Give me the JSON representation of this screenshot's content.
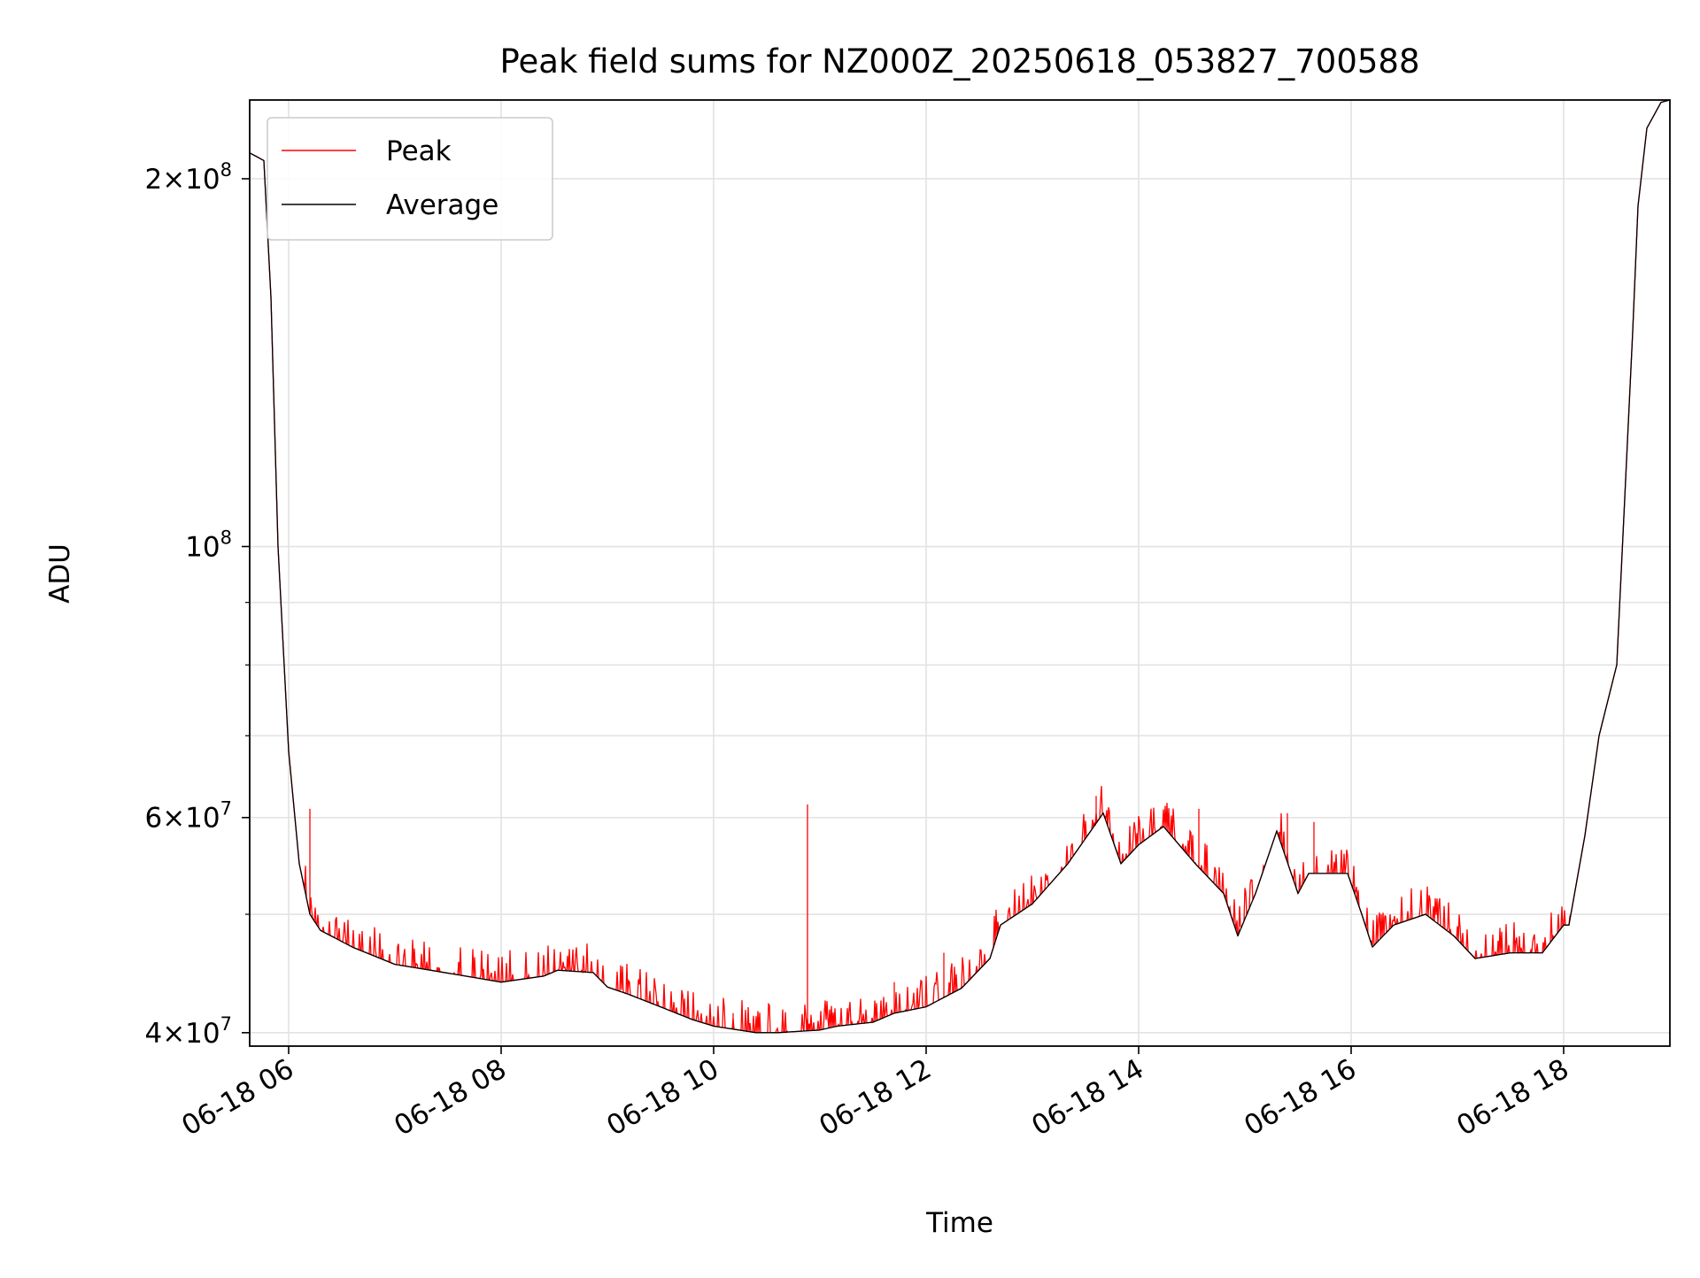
{
  "chart_data": {
    "type": "line",
    "title": "Peak field sums for NZ000Z_20250618_053827_700588",
    "xlabel": "Time",
    "ylabel": "ADU",
    "y_scale": "log",
    "ylim": [
      39000000,
      232000000
    ],
    "xlim": [
      "2025-06-18 05:38",
      "2025-06-18 19:00"
    ],
    "grid": true,
    "legend_placement": "upper-left",
    "x_ticks": [
      "06-18 06",
      "06-18 08",
      "06-18 10",
      "06-18 12",
      "06-18 14",
      "06-18 16",
      "06-18 18"
    ],
    "y_ticks": [
      {
        "value": 40000000,
        "mantissa": "4",
        "exponent": "7"
      },
      {
        "value": 60000000,
        "mantissa": "6",
        "exponent": "7"
      },
      {
        "value": 100000000,
        "mantissa": "",
        "exponent": "8"
      },
      {
        "value": 200000000,
        "mantissa": "2",
        "exponent": "8"
      }
    ],
    "series": [
      {
        "name": "Peak",
        "color": "#ff0000",
        "spikes": [
          {
            "x": "2025-06-18 06:12",
            "y": 61000000
          },
          {
            "x": "2025-06-18 08:30",
            "y": 46000000
          },
          {
            "x": "2025-06-18 10:11",
            "y": 41500000
          },
          {
            "x": "2025-06-18 10:53",
            "y": 61500000
          },
          {
            "x": "2025-06-18 11:42",
            "y": 44000000
          },
          {
            "x": "2025-06-18 12:10",
            "y": 46500000
          },
          {
            "x": "2025-06-18 13:36",
            "y": 62500000
          },
          {
            "x": "2025-06-18 14:34",
            "y": 61000000
          },
          {
            "x": "2025-06-18 15:24",
            "y": 60500000
          },
          {
            "x": "2025-06-18 15:39",
            "y": 59500000
          }
        ]
      },
      {
        "name": "Average",
        "color": "#000000",
        "x": [
          "2025-06-18 05:38",
          "2025-06-18 05:46",
          "2025-06-18 05:50",
          "2025-06-18 05:54",
          "2025-06-18 06:00",
          "2025-06-18 06:06",
          "2025-06-18 06:12",
          "2025-06-18 06:18",
          "2025-06-18 06:24",
          "2025-06-18 06:36",
          "2025-06-18 07:00",
          "2025-06-18 07:20",
          "2025-06-18 07:40",
          "2025-06-18 08:00",
          "2025-06-18 08:24",
          "2025-06-18 08:32",
          "2025-06-18 08:52",
          "2025-06-18 09:00",
          "2025-06-18 09:12",
          "2025-06-18 09:30",
          "2025-06-18 09:48",
          "2025-06-18 10:00",
          "2025-06-18 10:24",
          "2025-06-18 10:36",
          "2025-06-18 11:00",
          "2025-06-18 11:10",
          "2025-06-18 11:30",
          "2025-06-18 11:42",
          "2025-06-18 12:00",
          "2025-06-18 12:20",
          "2025-06-18 12:36",
          "2025-06-18 12:42",
          "2025-06-18 13:00",
          "2025-06-18 13:20",
          "2025-06-18 13:40",
          "2025-06-18 13:50",
          "2025-06-18 14:00",
          "2025-06-18 14:14",
          "2025-06-18 14:32",
          "2025-06-18 14:48",
          "2025-06-18 14:56",
          "2025-06-18 15:06",
          "2025-06-18 15:18",
          "2025-06-18 15:30",
          "2025-06-18 15:36",
          "2025-06-18 15:48",
          "2025-06-18 15:58",
          "2025-06-18 16:06",
          "2025-06-18 16:12",
          "2025-06-18 16:24",
          "2025-06-18 16:42",
          "2025-06-18 16:58",
          "2025-06-18 17:10",
          "2025-06-18 17:30",
          "2025-06-18 17:48",
          "2025-06-18 18:00",
          "2025-06-18 18:03",
          "2025-06-18 18:12",
          "2025-06-18 18:20",
          "2025-06-18 18:30",
          "2025-06-18 18:39",
          "2025-06-18 18:42",
          "2025-06-18 18:47",
          "2025-06-18 18:55",
          "2025-06-18 19:00"
        ],
        "values": [
          210000000,
          207000000,
          160000000,
          100000000,
          68000000,
          55000000,
          50000000,
          48500000,
          48000000,
          47000000,
          45500000,
          45000000,
          44500000,
          44000000,
          44500000,
          45000000,
          44800000,
          43600000,
          43000000,
          42000000,
          41000000,
          40500000,
          40000000,
          40000000,
          40200000,
          40500000,
          40800000,
          41500000,
          42000000,
          43500000,
          46000000,
          49000000,
          51000000,
          55000000,
          60500000,
          55000000,
          57000000,
          59000000,
          55000000,
          52000000,
          48000000,
          52000000,
          58500000,
          52000000,
          54000000,
          54000000,
          54000000,
          50000000,
          47000000,
          49000000,
          50000000,
          48000000,
          46000000,
          46500000,
          46500000,
          49000000,
          49000000,
          58000000,
          70000000,
          80000000,
          150000000,
          190000000,
          220000000,
          231000000,
          232000000
        ]
      }
    ]
  }
}
